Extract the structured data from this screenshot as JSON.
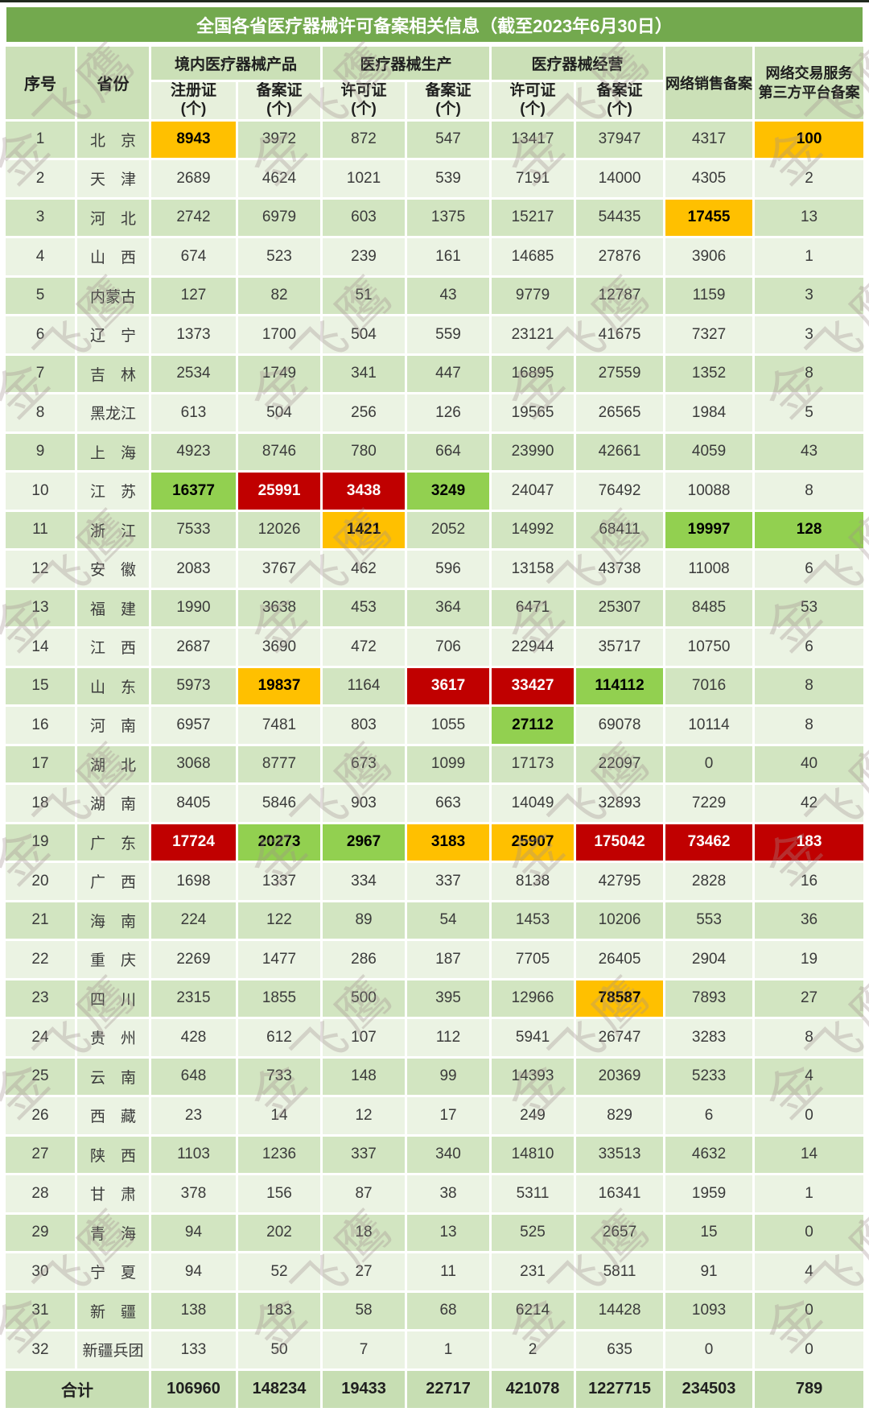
{
  "title": "全国各省医疗器械许可备案相关信息（截至2023年6月30日）",
  "watermark": "金飞鹰",
  "header": {
    "seq": "序号",
    "province": "省份",
    "groups": [
      {
        "label": "境内医疗器械产品",
        "subs": [
          "注册证\n(个)",
          "备案证\n(个)"
        ]
      },
      {
        "label": "医疗器械生产",
        "subs": [
          "许可证\n(个)",
          "备案证\n(个)"
        ]
      },
      {
        "label": "医疗器械经营",
        "subs": [
          "许可证\n(个)",
          "备案证\n(个)"
        ]
      }
    ],
    "net_sales": "网络销售备案",
    "platform": "网络交易服务\n第三方平台备案"
  },
  "colors": {
    "title_bg": "#73A94E",
    "orange": "#FFC000",
    "red": "#C00000",
    "green": "#92D050"
  },
  "rows": [
    {
      "no": "1",
      "province": "北　京",
      "values": [
        "8943",
        "3972",
        "872",
        "547",
        "13417",
        "37947",
        "4317",
        "100"
      ],
      "hl": {
        "0": "o",
        "7": "o"
      }
    },
    {
      "no": "2",
      "province": "天　津",
      "values": [
        "2689",
        "4624",
        "1021",
        "539",
        "7191",
        "14000",
        "4305",
        "2"
      ]
    },
    {
      "no": "3",
      "province": "河　北",
      "values": [
        "2742",
        "6979",
        "603",
        "1375",
        "15217",
        "54435",
        "17455",
        "13"
      ],
      "hl": {
        "6": "o"
      }
    },
    {
      "no": "4",
      "province": "山　西",
      "values": [
        "674",
        "523",
        "239",
        "161",
        "14685",
        "27876",
        "3906",
        "1"
      ]
    },
    {
      "no": "5",
      "province": "内蒙古",
      "values": [
        "127",
        "82",
        "51",
        "43",
        "9779",
        "12787",
        "1159",
        "3"
      ]
    },
    {
      "no": "6",
      "province": "辽　宁",
      "values": [
        "1373",
        "1700",
        "504",
        "559",
        "23121",
        "41675",
        "7327",
        "3"
      ]
    },
    {
      "no": "7",
      "province": "吉　林",
      "values": [
        "2534",
        "1749",
        "341",
        "447",
        "16895",
        "27559",
        "1352",
        "8"
      ]
    },
    {
      "no": "8",
      "province": "黑龙江",
      "values": [
        "613",
        "504",
        "256",
        "126",
        "19565",
        "26565",
        "1984",
        "5"
      ]
    },
    {
      "no": "9",
      "province": "上　海",
      "values": [
        "4923",
        "8746",
        "780",
        "664",
        "23990",
        "42661",
        "4059",
        "43"
      ]
    },
    {
      "no": "10",
      "province": "江　苏",
      "values": [
        "16377",
        "25991",
        "3438",
        "3249",
        "24047",
        "76492",
        "10088",
        "8"
      ],
      "hl": {
        "0": "g",
        "1": "r",
        "2": "r",
        "3": "g"
      }
    },
    {
      "no": "11",
      "province": "浙　江",
      "values": [
        "7533",
        "12026",
        "1421",
        "2052",
        "14992",
        "68411",
        "19997",
        "128"
      ],
      "hl": {
        "2": "o",
        "6": "g",
        "7": "g"
      }
    },
    {
      "no": "12",
      "province": "安　徽",
      "values": [
        "2083",
        "3767",
        "462",
        "596",
        "13158",
        "43738",
        "11008",
        "6"
      ]
    },
    {
      "no": "13",
      "province": "福　建",
      "values": [
        "1990",
        "3638",
        "453",
        "364",
        "6471",
        "25307",
        "8485",
        "53"
      ]
    },
    {
      "no": "14",
      "province": "江　西",
      "values": [
        "2687",
        "3690",
        "472",
        "706",
        "22944",
        "35717",
        "10750",
        "6"
      ]
    },
    {
      "no": "15",
      "province": "山　东",
      "values": [
        "5973",
        "19837",
        "1164",
        "3617",
        "33427",
        "114112",
        "7016",
        "8"
      ],
      "hl": {
        "1": "o",
        "3": "r",
        "4": "r",
        "5": "g"
      }
    },
    {
      "no": "16",
      "province": "河　南",
      "values": [
        "6957",
        "7481",
        "803",
        "1055",
        "27112",
        "69078",
        "10114",
        "8"
      ],
      "hl": {
        "4": "g"
      }
    },
    {
      "no": "17",
      "province": "湖　北",
      "values": [
        "3068",
        "8777",
        "673",
        "1099",
        "17173",
        "22097",
        "0",
        "40"
      ]
    },
    {
      "no": "18",
      "province": "湖　南",
      "values": [
        "8405",
        "5846",
        "903",
        "663",
        "14049",
        "32893",
        "7229",
        "42"
      ]
    },
    {
      "no": "19",
      "province": "广　东",
      "values": [
        "17724",
        "20273",
        "2967",
        "3183",
        "25907",
        "175042",
        "73462",
        "183"
      ],
      "hl": {
        "0": "r",
        "1": "g",
        "2": "g",
        "3": "o",
        "4": "o",
        "5": "r",
        "6": "r",
        "7": "r"
      }
    },
    {
      "no": "20",
      "province": "广　西",
      "values": [
        "1698",
        "1337",
        "334",
        "337",
        "8138",
        "42795",
        "2828",
        "16"
      ]
    },
    {
      "no": "21",
      "province": "海　南",
      "values": [
        "224",
        "122",
        "89",
        "54",
        "1453",
        "10206",
        "553",
        "36"
      ]
    },
    {
      "no": "22",
      "province": "重　庆",
      "values": [
        "2269",
        "1477",
        "286",
        "187",
        "7705",
        "26405",
        "2904",
        "19"
      ]
    },
    {
      "no": "23",
      "province": "四　川",
      "values": [
        "2315",
        "1855",
        "500",
        "395",
        "12966",
        "78587",
        "7893",
        "27"
      ],
      "hl": {
        "5": "o"
      }
    },
    {
      "no": "24",
      "province": "贵　州",
      "values": [
        "428",
        "612",
        "107",
        "112",
        "5941",
        "26747",
        "3283",
        "8"
      ]
    },
    {
      "no": "25",
      "province": "云　南",
      "values": [
        "648",
        "733",
        "148",
        "99",
        "14393",
        "20369",
        "5233",
        "4"
      ]
    },
    {
      "no": "26",
      "province": "西　藏",
      "values": [
        "23",
        "14",
        "12",
        "17",
        "249",
        "829",
        "6",
        "0"
      ]
    },
    {
      "no": "27",
      "province": "陕　西",
      "values": [
        "1103",
        "1236",
        "337",
        "340",
        "14810",
        "33513",
        "4632",
        "14"
      ]
    },
    {
      "no": "28",
      "province": "甘　肃",
      "values": [
        "378",
        "156",
        "87",
        "38",
        "5311",
        "16341",
        "1959",
        "1"
      ]
    },
    {
      "no": "29",
      "province": "青　海",
      "values": [
        "94",
        "202",
        "18",
        "13",
        "525",
        "2657",
        "15",
        "0"
      ]
    },
    {
      "no": "30",
      "province": "宁　夏",
      "values": [
        "94",
        "52",
        "27",
        "11",
        "231",
        "5811",
        "91",
        "4"
      ]
    },
    {
      "no": "31",
      "province": "新　疆",
      "values": [
        "138",
        "183",
        "58",
        "68",
        "6214",
        "14428",
        "1093",
        "0"
      ]
    },
    {
      "no": "32",
      "province": "新疆兵团",
      "values": [
        "133",
        "50",
        "7",
        "1",
        "2",
        "635",
        "0",
        "0"
      ]
    }
  ],
  "total": {
    "label": "合计",
    "values": [
      "106960",
      "148234",
      "19433",
      "22717",
      "421078",
      "1227715",
      "234503",
      "789"
    ]
  }
}
